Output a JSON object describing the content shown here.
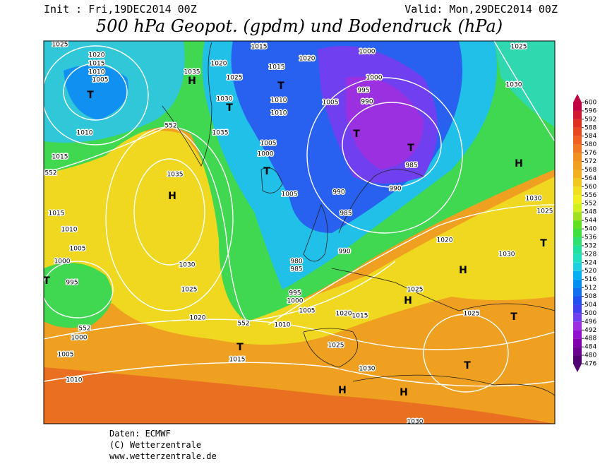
{
  "header": {
    "init": "Init : Fri,19DEC2014 00Z",
    "valid": "Valid: Mon,29DEC2014 00Z",
    "title": "500 hPa Geopot. (gpdm) und Bodendruck (hPa)"
  },
  "colorbar": {
    "ticks": [
      476,
      480,
      484,
      488,
      492,
      496,
      500,
      504,
      508,
      512,
      516,
      520,
      524,
      528,
      532,
      536,
      540,
      544,
      548,
      552,
      556,
      560,
      564,
      568,
      572,
      576,
      580,
      584,
      588,
      592,
      596,
      600
    ],
    "colors": [
      "#500070",
      "#6a0090",
      "#8000b0",
      "#9010d0",
      "#9a30e0",
      "#7040f0",
      "#4040f0",
      "#2050f0",
      "#1070f0",
      "#0090f0",
      "#00b0f0",
      "#20d0e0",
      "#20e0c0",
      "#20e0a0",
      "#30e070",
      "#40e040",
      "#60e020",
      "#a0e020",
      "#d0f020",
      "#f0f020",
      "#f0e020",
      "#f0c820",
      "#f0b020",
      "#f0a020",
      "#f09020",
      "#f07820",
      "#f06020",
      "#e84820",
      "#e03020",
      "#d01830",
      "#c00040"
    ]
  },
  "map": {
    "labels": [
      "1025",
      "1020",
      "1015",
      "1010",
      "1005",
      "T",
      "1010",
      "1015",
      "552",
      "552",
      "1035",
      "H",
      "1020",
      "1025",
      "1030",
      "T",
      "1035",
      "1015",
      "1015",
      "1020",
      "T",
      "1010",
      "1010",
      "1005",
      "1000",
      "1000",
      "995",
      "990",
      "T",
      "T",
      "985",
      "1025",
      "1030",
      "H",
      "1005",
      "1000",
      "T",
      "1005",
      "990",
      "990",
      "985",
      "990",
      "980",
      "985",
      "995",
      "1000",
      "1005",
      "1010",
      "552",
      "1020",
      "1015",
      "1025",
      "T",
      "1015",
      "1030",
      "H",
      "H",
      "1030",
      "T",
      "1025",
      "T",
      "H",
      "1025",
      "H",
      "1030",
      "T",
      "1020",
      "1030",
      "1025",
      "1035",
      "H",
      "1030",
      "1025",
      "1020",
      "1015",
      "1010",
      "1005",
      "1000",
      "995",
      "T",
      "552",
      "1000",
      "1005",
      "1010"
    ]
  },
  "footer": {
    "source": "Daten: ECMWF",
    "copyright": "(C) Wetterzentrale",
    "url": "www.wetterzentrale.de"
  }
}
